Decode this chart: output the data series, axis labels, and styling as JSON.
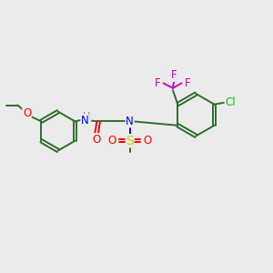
{
  "bg_color": "#ebebeb",
  "bond_color": "#2d6e2d",
  "atom_colors": {
    "O": "#ff0000",
    "N": "#0000ff",
    "H": "#808080",
    "S": "#cccc00",
    "F": "#cc00cc",
    "Cl": "#00cc00",
    "C": "#2d6e2d"
  },
  "figsize": [
    3.0,
    3.0
  ],
  "dpi": 100,
  "lw": 1.4,
  "fs": 8.5
}
